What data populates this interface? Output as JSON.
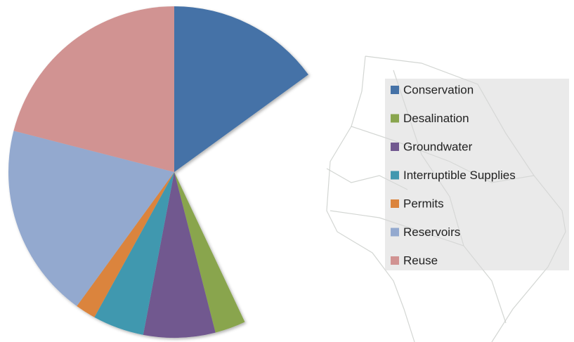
{
  "chart_data": {
    "type": "pie",
    "categories": [
      "Conservation",
      null,
      "Desalination",
      "Groundwater",
      "Interruptible Supplies",
      "Permits",
      "Reservoirs",
      "Reuse"
    ],
    "values": [
      15,
      28,
      3,
      7,
      5,
      2,
      19,
      21
    ],
    "colors": [
      "#4572a7",
      null,
      "#89a54e",
      "#71588f",
      "#4198af",
      "#db843d",
      "#93a9cf",
      "#d19392"
    ],
    "legend": "right"
  }
}
